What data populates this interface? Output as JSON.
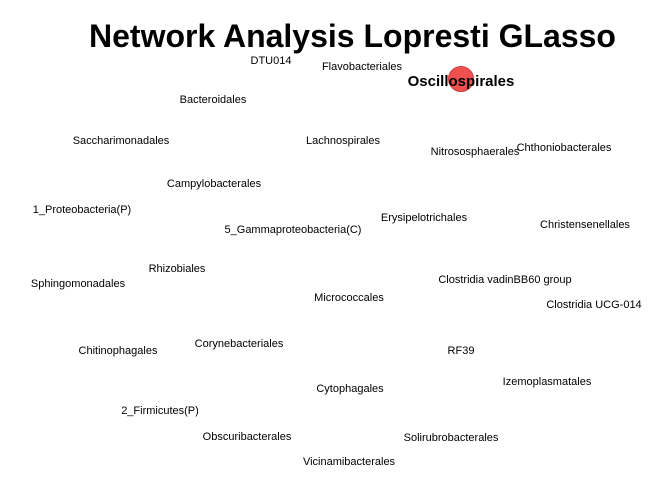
{
  "title": "Network Analysis Lopresti GLasso",
  "colors": {
    "highlight_node": "#f05050",
    "text": "#000000",
    "background": "#ffffff"
  },
  "nodes": [
    {
      "label": "DTU014"
    },
    {
      "label": "Flavobacteriales"
    },
    {
      "label": "Oscillospirales",
      "highlighted": true
    },
    {
      "label": "Bacteroidales"
    },
    {
      "label": "Saccharimonadales"
    },
    {
      "label": "Lachnospirales"
    },
    {
      "label": "Nitrososphaerales"
    },
    {
      "label": "Chthoniobacterales"
    },
    {
      "label": "Campylobacterales"
    },
    {
      "label": "1_Proteobacteria(P)"
    },
    {
      "label": "Erysipelotrichales"
    },
    {
      "label": "5_Gammaproteobacteria(C)"
    },
    {
      "label": "Christensenellales"
    },
    {
      "label": "Rhizobiales"
    },
    {
      "label": "Clostridia vadinBB60 group"
    },
    {
      "label": "Sphingomonadales"
    },
    {
      "label": "Micrococcales"
    },
    {
      "label": "Clostridia UCG-014"
    },
    {
      "label": "Chitinophagales"
    },
    {
      "label": "Corynebacteriales"
    },
    {
      "label": "RF39"
    },
    {
      "label": "Izemoplasmatales"
    },
    {
      "label": "Cytophagales"
    },
    {
      "label": "2_Firmicutes(P)"
    },
    {
      "label": "Obscuribacterales"
    },
    {
      "label": "Solirubrobacterales"
    },
    {
      "label": "Vicinamibacterales"
    }
  ]
}
